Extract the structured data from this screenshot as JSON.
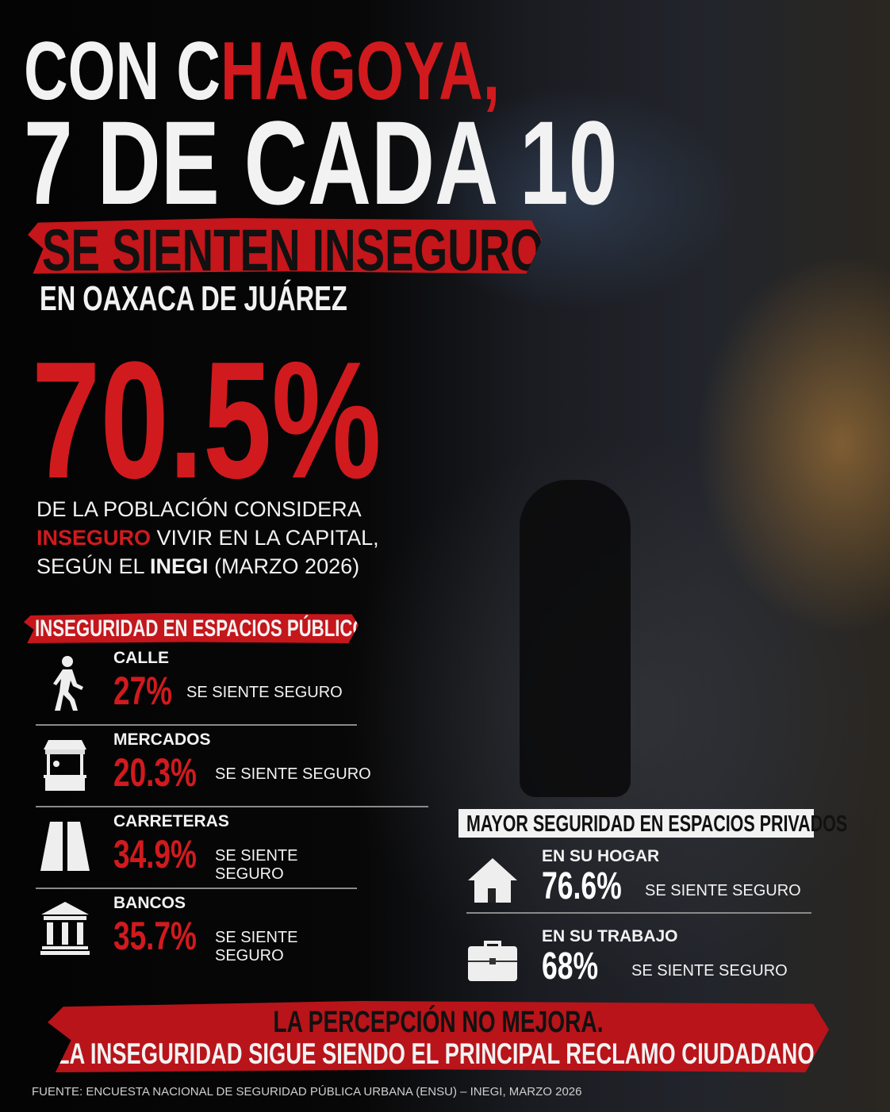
{
  "title": {
    "line1_a": "CON C",
    "line1_b": "HAGOYA,",
    "line2": "7 DE CADA 10",
    "banner": "SE SIENTEN INSEGUROS",
    "location": "EN OAXACA DE JUÁREZ"
  },
  "headline_stat": {
    "value": "70.5%",
    "line1": "DE LA POBLACIÓN CONSIDERA",
    "line2_red": "INSEGURO",
    "line2_rest": " VIVIR EN LA CAPITAL,",
    "line3_a": "SEGÚN EL ",
    "line3_bold": "INEGI",
    "line3_b": " (MARZO 2026)"
  },
  "public": {
    "header": "INSEGURIDAD EN ESPACIOS PÚBLICOS",
    "items": [
      {
        "name": "CALLE",
        "value": "27%",
        "label": "SE SIENTE SEGURO",
        "icon": "walking-person-icon"
      },
      {
        "name": "MERCADOS",
        "value": "20.3%",
        "label": "SE SIENTE SEGURO",
        "icon": "market-stall-icon"
      },
      {
        "name": "CARRETERAS",
        "value": "34.9%",
        "label": "SE SIENTE SEGURO",
        "icon": "road-icon"
      },
      {
        "name": "BANCOS",
        "value": "35.7%",
        "label": "SE SIENTE SEGURO",
        "icon": "bank-icon"
      }
    ]
  },
  "private": {
    "header": "MAYOR SEGURIDAD EN ESPACIOS PRIVADOS",
    "items": [
      {
        "name": "EN SU HOGAR",
        "value": "76.6%",
        "label": "SE SIENTE SEGURO",
        "icon": "house-icon"
      },
      {
        "name": "EN SU TRABAJO",
        "value": "68%",
        "label": "SE SIENTE SEGURO",
        "icon": "briefcase-icon"
      }
    ]
  },
  "footer_banner": {
    "line1": "LA PERCEPCIÓN NO MEJORA.",
    "line2": "LA INSEGURIDAD SIGUE SIENDO EL PRINCIPAL RECLAMO CIUDADANO."
  },
  "source": "FUENTE: ENCUESTA NACIONAL DE SEGURIDAD PÚBLICA URBANA (ENSU) – INEGI, MARZO 2026",
  "colors": {
    "accent_red": "#d11a1e",
    "banner_red": "#c4161b",
    "background": "#050505"
  }
}
